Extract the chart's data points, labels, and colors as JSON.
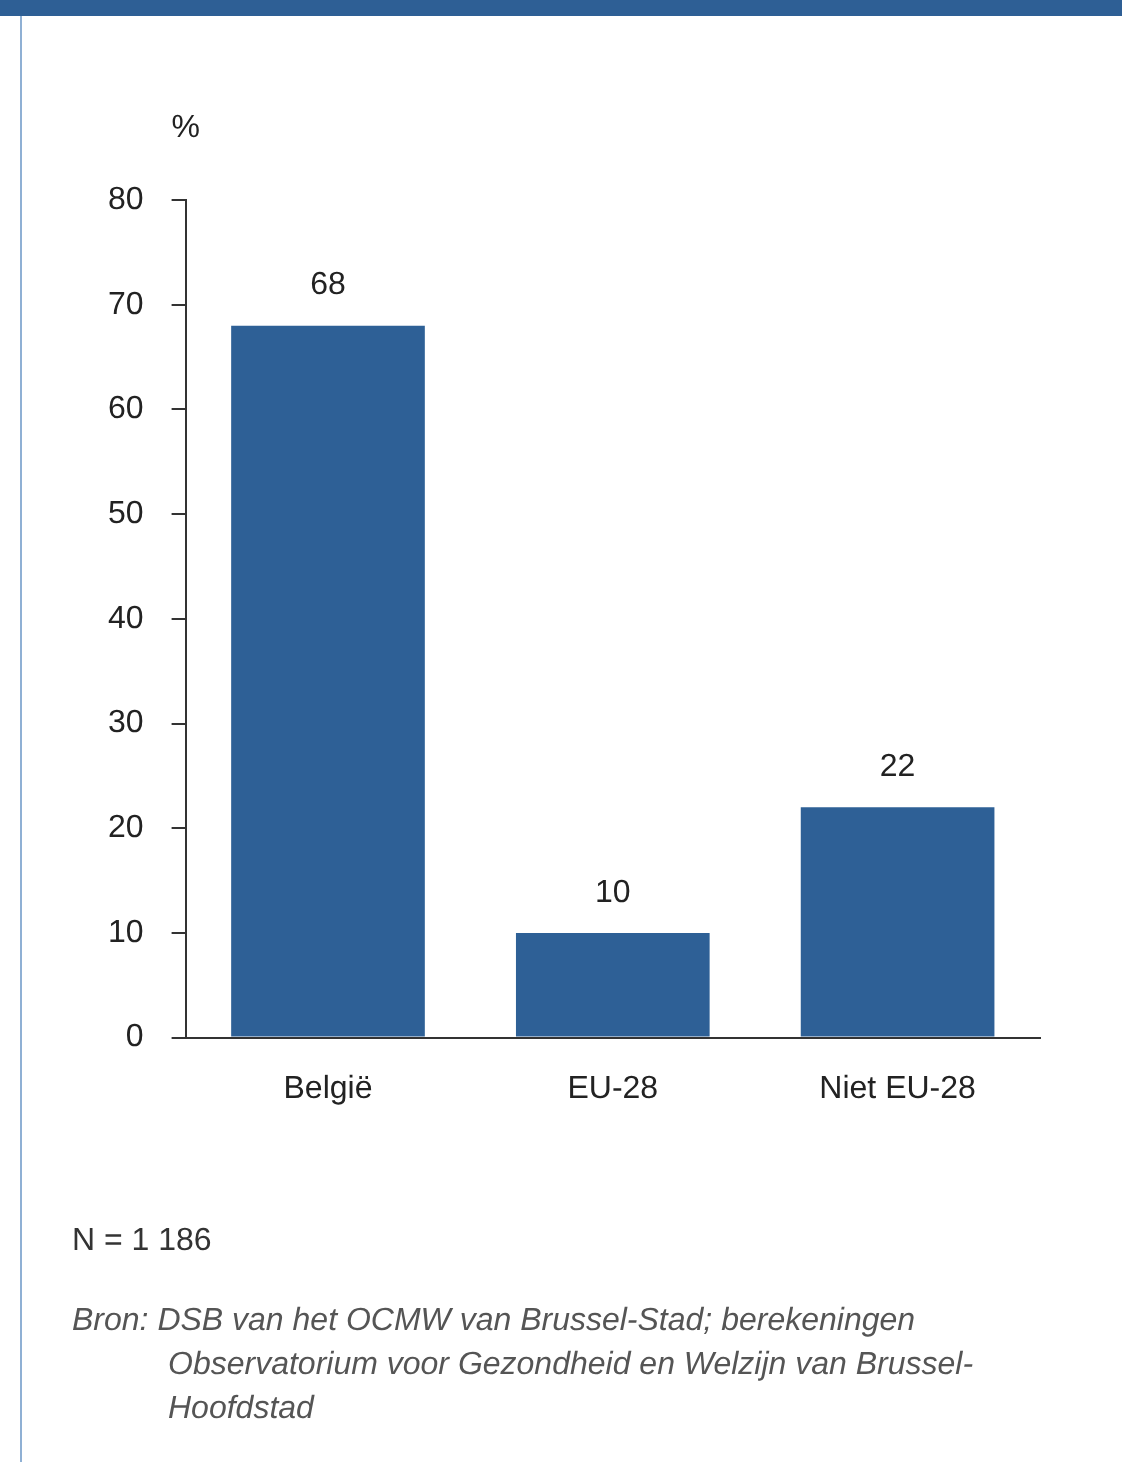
{
  "chart_data": {
    "type": "bar",
    "ylabel": "%",
    "categories": [
      "België",
      "EU-28",
      "Niet EU-28"
    ],
    "values": [
      68,
      10,
      22
    ],
    "color": "#2e6096",
    "ylim": [
      0,
      80
    ],
    "yticks": [
      0,
      10,
      20,
      30,
      40,
      50,
      60,
      70,
      80
    ],
    "grid": false,
    "legend": false,
    "data_labels": true,
    "annotations": [
      "N = 1 186",
      "Bron: DSB van het OCMW van Brussel-Stad; berekeningen Observatorium voor Gezondheid en Welzijn van Brussel-Hoofdstad"
    ]
  }
}
